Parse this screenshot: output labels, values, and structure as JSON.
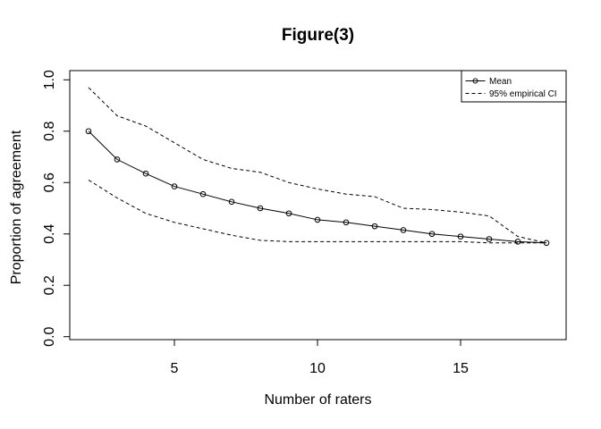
{
  "window": {
    "background": "#ffffff",
    "foreground": "#000000"
  },
  "chart_data": {
    "type": "line",
    "title": "Figure(3)",
    "xlabel": "Number of raters",
    "ylabel": "Proportion of agreement",
    "x": [
      2,
      3,
      4,
      5,
      6,
      7,
      8,
      9,
      10,
      11,
      12,
      13,
      14,
      15,
      16,
      17,
      18
    ],
    "series": [
      {
        "name": "Mean",
        "style": "solid",
        "marker": "open-circle",
        "values": [
          0.8,
          0.69,
          0.635,
          0.585,
          0.555,
          0.525,
          0.5,
          0.48,
          0.455,
          0.445,
          0.43,
          0.415,
          0.4,
          0.39,
          0.38,
          0.37,
          0.365
        ]
      },
      {
        "name": "95% empirical CI (upper)",
        "style": "dashed",
        "marker": "none",
        "values": [
          0.97,
          0.86,
          0.82,
          0.755,
          0.69,
          0.655,
          0.64,
          0.6,
          0.575,
          0.555,
          0.545,
          0.5,
          0.495,
          0.485,
          0.47,
          0.39,
          0.365
        ]
      },
      {
        "name": "95% empirical CI (lower)",
        "style": "dashed",
        "marker": "none",
        "values": [
          0.61,
          0.54,
          0.48,
          0.445,
          0.42,
          0.395,
          0.375,
          0.37,
          0.37,
          0.37,
          0.37,
          0.37,
          0.37,
          0.37,
          0.365,
          0.365,
          0.365
        ]
      }
    ],
    "x_ticks": [
      5,
      10,
      15
    ],
    "y_ticks": [
      0.0,
      0.2,
      0.4,
      0.6,
      0.8,
      1.0
    ],
    "y_tick_labels": [
      "0.0",
      "0.2",
      "0.4",
      "0.6",
      "0.8",
      "1.0"
    ],
    "xlim": [
      2,
      18
    ],
    "ylim": [
      0,
      1
    ],
    "grid": false,
    "legend": {
      "position": "topright",
      "entries": [
        {
          "label": "Mean",
          "style": "solid",
          "marker": "open-circle"
        },
        {
          "label": "95% empirical CI",
          "style": "dashed",
          "marker": "none"
        }
      ]
    },
    "colors": {
      "line": "#000000",
      "background": "#ffffff"
    }
  }
}
